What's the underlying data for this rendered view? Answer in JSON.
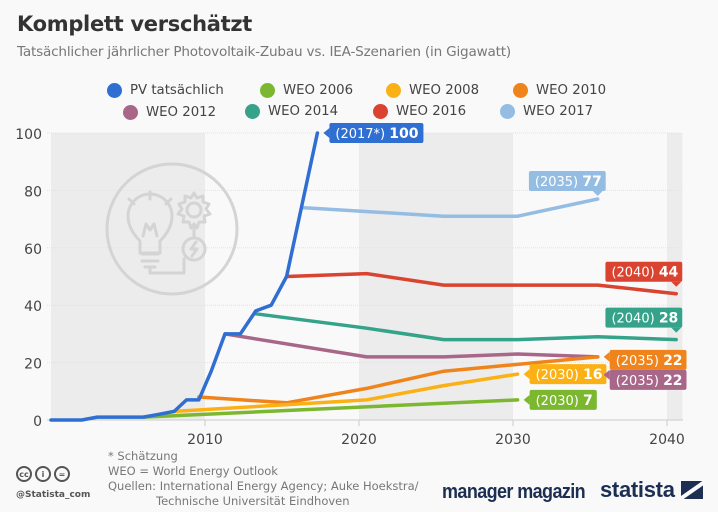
{
  "header": {
    "title": "Komplett verschätzt",
    "subtitle": "Tatsächlicher jährlicher Photovoltaik-Zubau vs. IEA-Szenarien (in Gigawatt)"
  },
  "legend": [
    {
      "label": "PV tatsächlich",
      "color": "#2f6fd1"
    },
    {
      "label": "WEO 2006",
      "color": "#7cb82f"
    },
    {
      "label": "WEO 2008",
      "color": "#fbb116"
    },
    {
      "label": "WEO 2010",
      "color": "#f0841c"
    },
    {
      "label": "WEO 2012",
      "color": "#a86788"
    },
    {
      "label": "WEO 2014",
      "color": "#34a38a"
    },
    {
      "label": "WEO 2016",
      "color": "#d9432f"
    },
    {
      "label": "WEO 2017",
      "color": "#95bde3"
    }
  ],
  "chart_data": {
    "type": "line",
    "title": "Komplett verschätzt",
    "subtitle": "Tatsächlicher jährlicher Photovoltaik-Zubau vs. IEA-Szenarien (in Gigawatt)",
    "xlabel": "",
    "ylabel": "Gigawatt",
    "xlim": [
      2000,
      2041
    ],
    "ylim": [
      0,
      100
    ],
    "x_ticks": [
      2010,
      2020,
      2030,
      2040
    ],
    "y_ticks": [
      0,
      20,
      40,
      60,
      80,
      100
    ],
    "grid": true,
    "legend_position": "top",
    "shaded_periods": [
      [
        2000,
        2010
      ],
      [
        2020,
        2030
      ],
      [
        2040,
        2041
      ]
    ],
    "series": [
      {
        "name": "PV tatsächlich",
        "color": "#2f6fd1",
        "points": [
          [
            2000,
            0
          ],
          [
            2002,
            0
          ],
          [
            2003,
            1
          ],
          [
            2004,
            1
          ],
          [
            2005,
            1
          ],
          [
            2006,
            1
          ],
          [
            2007,
            2
          ],
          [
            2008,
            3
          ],
          [
            2008.8,
            7
          ],
          [
            2009.6,
            7
          ],
          [
            2010.4,
            17
          ],
          [
            2011.3,
            30
          ],
          [
            2012.3,
            30
          ],
          [
            2013.3,
            38
          ],
          [
            2014.3,
            40
          ],
          [
            2015.3,
            50
          ],
          [
            2017.3,
            100
          ]
        ],
        "end_label": {
          "prefix": "(2017*)",
          "value": "100"
        }
      },
      {
        "name": "WEO 2006",
        "color": "#7cb82f",
        "points": [
          [
            2006,
            1
          ],
          [
            2030.3,
            7
          ]
        ],
        "end_label": {
          "prefix": "(2030)",
          "value": "7"
        }
      },
      {
        "name": "WEO 2008",
        "color": "#fbb116",
        "points": [
          [
            2008,
            3
          ],
          [
            2020.5,
            7
          ],
          [
            2025.5,
            12
          ],
          [
            2030.3,
            16
          ]
        ],
        "end_label": {
          "prefix": "(2030)",
          "value": "16"
        }
      },
      {
        "name": "WEO 2010",
        "color": "#f0841c",
        "points": [
          [
            2009.6,
            8
          ],
          [
            2015.3,
            6
          ],
          [
            2020.5,
            11
          ],
          [
            2025.5,
            17
          ],
          [
            2035.5,
            22
          ]
        ],
        "end_label": {
          "prefix": "(2035)",
          "value": "22"
        }
      },
      {
        "name": "WEO 2012",
        "color": "#a86788",
        "points": [
          [
            2011.3,
            30
          ],
          [
            2020.5,
            22
          ],
          [
            2025.5,
            22
          ],
          [
            2030.3,
            23
          ],
          [
            2035.5,
            22
          ]
        ],
        "end_label": {
          "prefix": "(2035)",
          "value": "22"
        }
      },
      {
        "name": "WEO 2014",
        "color": "#34a38a",
        "points": [
          [
            2013.3,
            37
          ],
          [
            2020.5,
            32
          ],
          [
            2025.5,
            28
          ],
          [
            2030.3,
            28
          ],
          [
            2035.5,
            29
          ],
          [
            2040.6,
            28
          ]
        ],
        "end_label": {
          "prefix": "(2040)",
          "value": "28"
        }
      },
      {
        "name": "WEO 2016",
        "color": "#d9432f",
        "points": [
          [
            2015.3,
            50
          ],
          [
            2020.5,
            51
          ],
          [
            2025.5,
            47
          ],
          [
            2030.3,
            47
          ],
          [
            2035.5,
            47
          ],
          [
            2040.6,
            44
          ]
        ],
        "end_label": {
          "prefix": "(2040)",
          "value": "44"
        }
      },
      {
        "name": "WEO 2017",
        "color": "#95bde3",
        "points": [
          [
            2016.3,
            74
          ],
          [
            2025.5,
            71
          ],
          [
            2030.3,
            71
          ],
          [
            2035.5,
            77
          ]
        ],
        "end_label": {
          "prefix": "(2035)",
          "value": "77"
        }
      }
    ]
  },
  "footer": {
    "note": "* Schätzung",
    "abbreviation": "WEO = World Energy Outlook",
    "sources_line1": "Quellen: International Energy Agency; Auke Hoekstra/",
    "sources_line2": "Technische Universität Eindhoven",
    "handle": "@Statista_com",
    "cc_icons": [
      "cc",
      "by",
      "nd"
    ],
    "partner_logo": "manager magazin",
    "brand_logo": "statista"
  }
}
